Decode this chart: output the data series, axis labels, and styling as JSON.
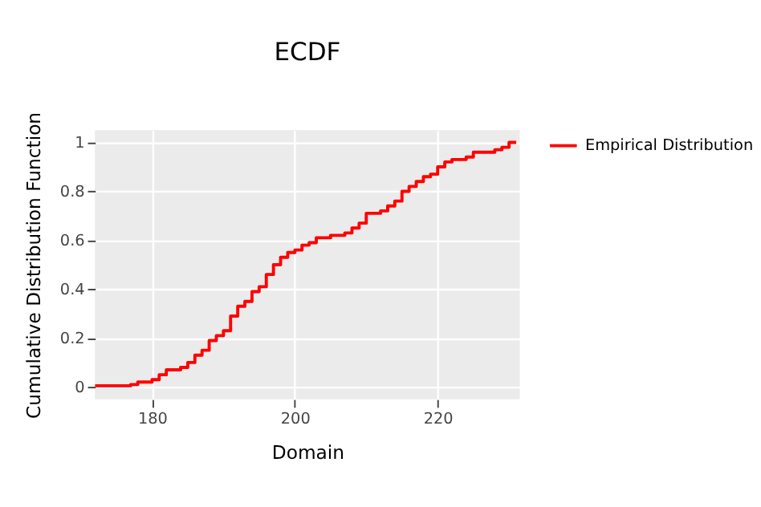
{
  "chart_data": {
    "type": "step",
    "title": "ECDF",
    "xlabel": "Domain",
    "ylabel": "Cumulative Distribution Function",
    "xlim": [
      172,
      231.5
    ],
    "ylim": [
      -0.05,
      1.05
    ],
    "xticks": [
      180,
      200,
      220
    ],
    "yticks": [
      0,
      0.2,
      0.4,
      0.6,
      0.8,
      1
    ],
    "grid": true,
    "legend": "top right",
    "line_style": "solid",
    "series": [
      {
        "name": "Empirical Distribution",
        "color": "#ff0000",
        "x": [
          172,
          177,
          178,
          180,
          181,
          182,
          184,
          185,
          186,
          187,
          188,
          189,
          190,
          191,
          192,
          193,
          194,
          195,
          196,
          197,
          198,
          199,
          200,
          201,
          202,
          203,
          205,
          207,
          208,
          209,
          210,
          212,
          213,
          214,
          215,
          216,
          217,
          218,
          219,
          220,
          221,
          222,
          224,
          225,
          228,
          229,
          230,
          231
        ],
        "values": [
          0.005,
          0.01,
          0.02,
          0.03,
          0.05,
          0.07,
          0.08,
          0.1,
          0.13,
          0.15,
          0.19,
          0.21,
          0.23,
          0.29,
          0.33,
          0.35,
          0.39,
          0.41,
          0.46,
          0.5,
          0.53,
          0.55,
          0.56,
          0.58,
          0.59,
          0.61,
          0.62,
          0.63,
          0.65,
          0.67,
          0.71,
          0.72,
          0.74,
          0.76,
          0.8,
          0.82,
          0.84,
          0.86,
          0.87,
          0.9,
          0.92,
          0.93,
          0.94,
          0.96,
          0.97,
          0.98,
          1.0,
          1.0
        ]
      }
    ]
  }
}
